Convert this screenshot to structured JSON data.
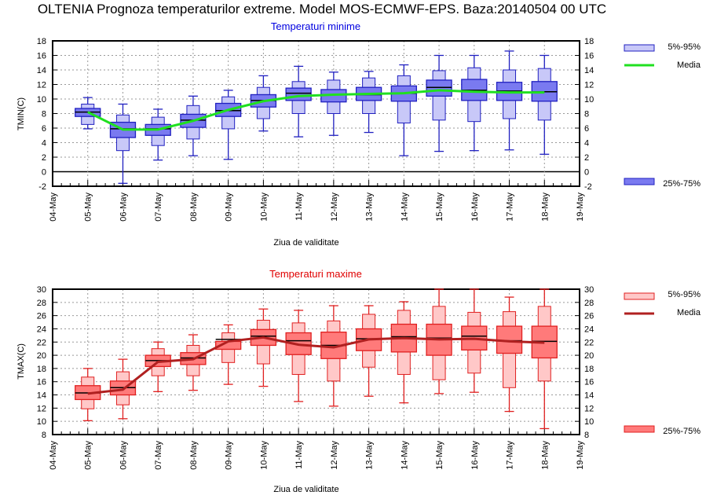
{
  "title": "OLTENIA  Prognoza temperaturilor extreme.  Model MOS-ECMWF-EPS. Baza:20140504 00 UTC",
  "chart_data": [
    {
      "type": "box",
      "title": "Temperaturi minime",
      "ylabel": "TMIN(C)",
      "xlabel": "Ziua de validitate",
      "ylim": [
        -2,
        18
      ],
      "yticks": [
        "-2",
        "0",
        "2",
        "4",
        "6",
        "8",
        "10",
        "12",
        "14",
        "16",
        "18"
      ],
      "xticks": [
        "04-May",
        "05-May",
        "06-May",
        "07-May",
        "08-May",
        "09-May",
        "10-May",
        "11-May",
        "12-May",
        "13-May",
        "14-May",
        "15-May",
        "16-May",
        "17-May",
        "18-May",
        "19-May"
      ],
      "grid": true,
      "colors": {
        "outer": "#c8c8f8",
        "inner": "#7a7af0",
        "edge": "#2020c0",
        "mean": "#20e020"
      },
      "legend": {
        "outer": "5%-95%",
        "mean": "Media",
        "inner": "25%-75%",
        "placement": "right"
      },
      "categories": [
        "05-May",
        "06-May",
        "07-May",
        "08-May",
        "09-May",
        "10-May",
        "11-May",
        "12-May",
        "13-May",
        "14-May",
        "15-May",
        "16-May",
        "17-May",
        "18-May"
      ],
      "min": [
        5.9,
        -1.6,
        1.6,
        2.2,
        1.7,
        5.6,
        4.8,
        5.0,
        5.4,
        2.2,
        2.8,
        2.9,
        3.0,
        2.4
      ],
      "p5": [
        6.5,
        2.9,
        3.6,
        4.5,
        5.9,
        7.3,
        8.0,
        8.0,
        8.0,
        6.7,
        7.1,
        6.9,
        7.3,
        7.1
      ],
      "p25": [
        7.6,
        4.7,
        5.0,
        6.1,
        7.6,
        8.9,
        9.8,
        9.6,
        9.8,
        9.7,
        10.4,
        9.8,
        9.8,
        9.7
      ],
      "median": [
        8.2,
        5.9,
        5.9,
        7.1,
        8.4,
        9.8,
        10.8,
        10.6,
        10.6,
        10.8,
        11.6,
        11.2,
        11.1,
        11.0
      ],
      "p75": [
        8.7,
        6.8,
        6.5,
        7.9,
        9.4,
        10.6,
        11.5,
        11.3,
        11.6,
        11.8,
        12.6,
        12.7,
        12.3,
        12.4
      ],
      "p95": [
        9.3,
        7.8,
        7.5,
        9.1,
        10.3,
        11.6,
        12.4,
        12.6,
        12.9,
        13.2,
        13.9,
        14.3,
        14.0,
        14.2
      ],
      "max": [
        10.2,
        9.3,
        8.6,
        10.4,
        11.2,
        13.2,
        14.5,
        13.7,
        13.8,
        14.7,
        16.0,
        16.0,
        16.6,
        16.0
      ],
      "mean": [
        8.2,
        5.8,
        5.8,
        7.0,
        8.5,
        9.7,
        10.4,
        10.6,
        10.7,
        10.8,
        11.2,
        11.0,
        10.9,
        10.9
      ]
    },
    {
      "type": "box",
      "title": "Temperaturi maxime",
      "ylabel": "TMAX(C)",
      "xlabel": "Ziua de validitate",
      "ylim": [
        8,
        30
      ],
      "yticks": [
        "8",
        "10",
        "12",
        "14",
        "16",
        "18",
        "20",
        "22",
        "24",
        "26",
        "28",
        "30"
      ],
      "xticks": [
        "04-May",
        "05-May",
        "06-May",
        "07-May",
        "08-May",
        "09-May",
        "10-May",
        "11-May",
        "12-May",
        "13-May",
        "14-May",
        "15-May",
        "16-May",
        "17-May",
        "18-May",
        "19-May"
      ],
      "grid": true,
      "colors": {
        "outer": "#ffc8c8",
        "inner": "#ff7a7a",
        "edge": "#e02020",
        "mean": "#b02020"
      },
      "legend": {
        "outer": "5%-95%",
        "mean": "Media",
        "inner": "25%-75%",
        "placement": "right"
      },
      "categories": [
        "05-May",
        "06-May",
        "07-May",
        "08-May",
        "09-May",
        "10-May",
        "11-May",
        "12-May",
        "13-May",
        "14-May",
        "15-May",
        "16-May",
        "17-May",
        "18-May"
      ],
      "min": [
        10.1,
        10.4,
        14.5,
        14.7,
        15.6,
        15.3,
        13.0,
        12.3,
        13.8,
        12.8,
        14.2,
        14.4,
        11.5,
        8.9
      ],
      "p5": [
        11.9,
        12.5,
        16.9,
        16.9,
        18.9,
        18.7,
        17.1,
        16.1,
        18.2,
        17.1,
        16.3,
        17.3,
        15.1,
        16.1
      ],
      "p25": [
        13.3,
        14.0,
        18.3,
        18.6,
        20.9,
        21.5,
        20.1,
        19.5,
        20.7,
        20.5,
        20.0,
        20.8,
        20.3,
        19.6
      ],
      "median": [
        14.3,
        15.1,
        19.2,
        19.6,
        22.4,
        22.9,
        22.2,
        21.5,
        22.5,
        22.8,
        22.6,
        22.9,
        22.2,
        22.1
      ],
      "p75": [
        15.4,
        16.1,
        20.0,
        20.4,
        22.1,
        23.9,
        23.4,
        23.5,
        24.0,
        24.7,
        24.7,
        24.4,
        24.4,
        24.4
      ],
      "p95": [
        16.7,
        17.5,
        21.0,
        21.5,
        23.4,
        25.3,
        24.9,
        25.2,
        26.2,
        26.8,
        27.4,
        26.5,
        26.6,
        27.4
      ],
      "max": [
        18.0,
        19.4,
        22.0,
        23.1,
        24.6,
        27.0,
        26.8,
        27.5,
        27.5,
        28.1,
        30.0,
        30.0,
        28.8,
        30.0
      ],
      "mean": [
        14.2,
        14.8,
        19.0,
        19.4,
        22.1,
        22.7,
        21.6,
        21.2,
        22.4,
        22.6,
        22.4,
        22.5,
        22.1,
        21.9
      ]
    }
  ]
}
